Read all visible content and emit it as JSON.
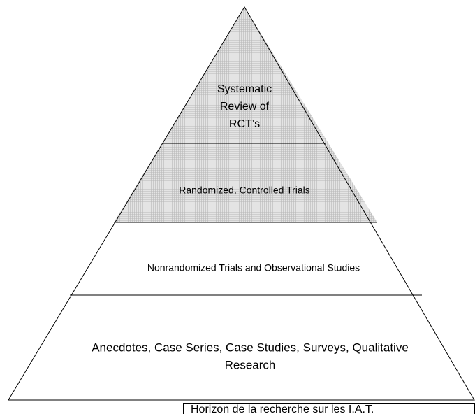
{
  "levels": [
    {
      "lines": [
        "Systematic",
        "Review of",
        "RCT’s"
      ]
    },
    {
      "lines": [
        "Randomized, Controlled Trials"
      ]
    },
    {
      "lines": [
        "Nonrandomized Trials and Observational Studies"
      ]
    },
    {
      "lines": [
        "Anecdotes, Case Series, Case Studies, Surveys, Qualitative",
        "Research"
      ]
    }
  ],
  "caption": "Horizon de la recherche sur les I.A.T."
}
